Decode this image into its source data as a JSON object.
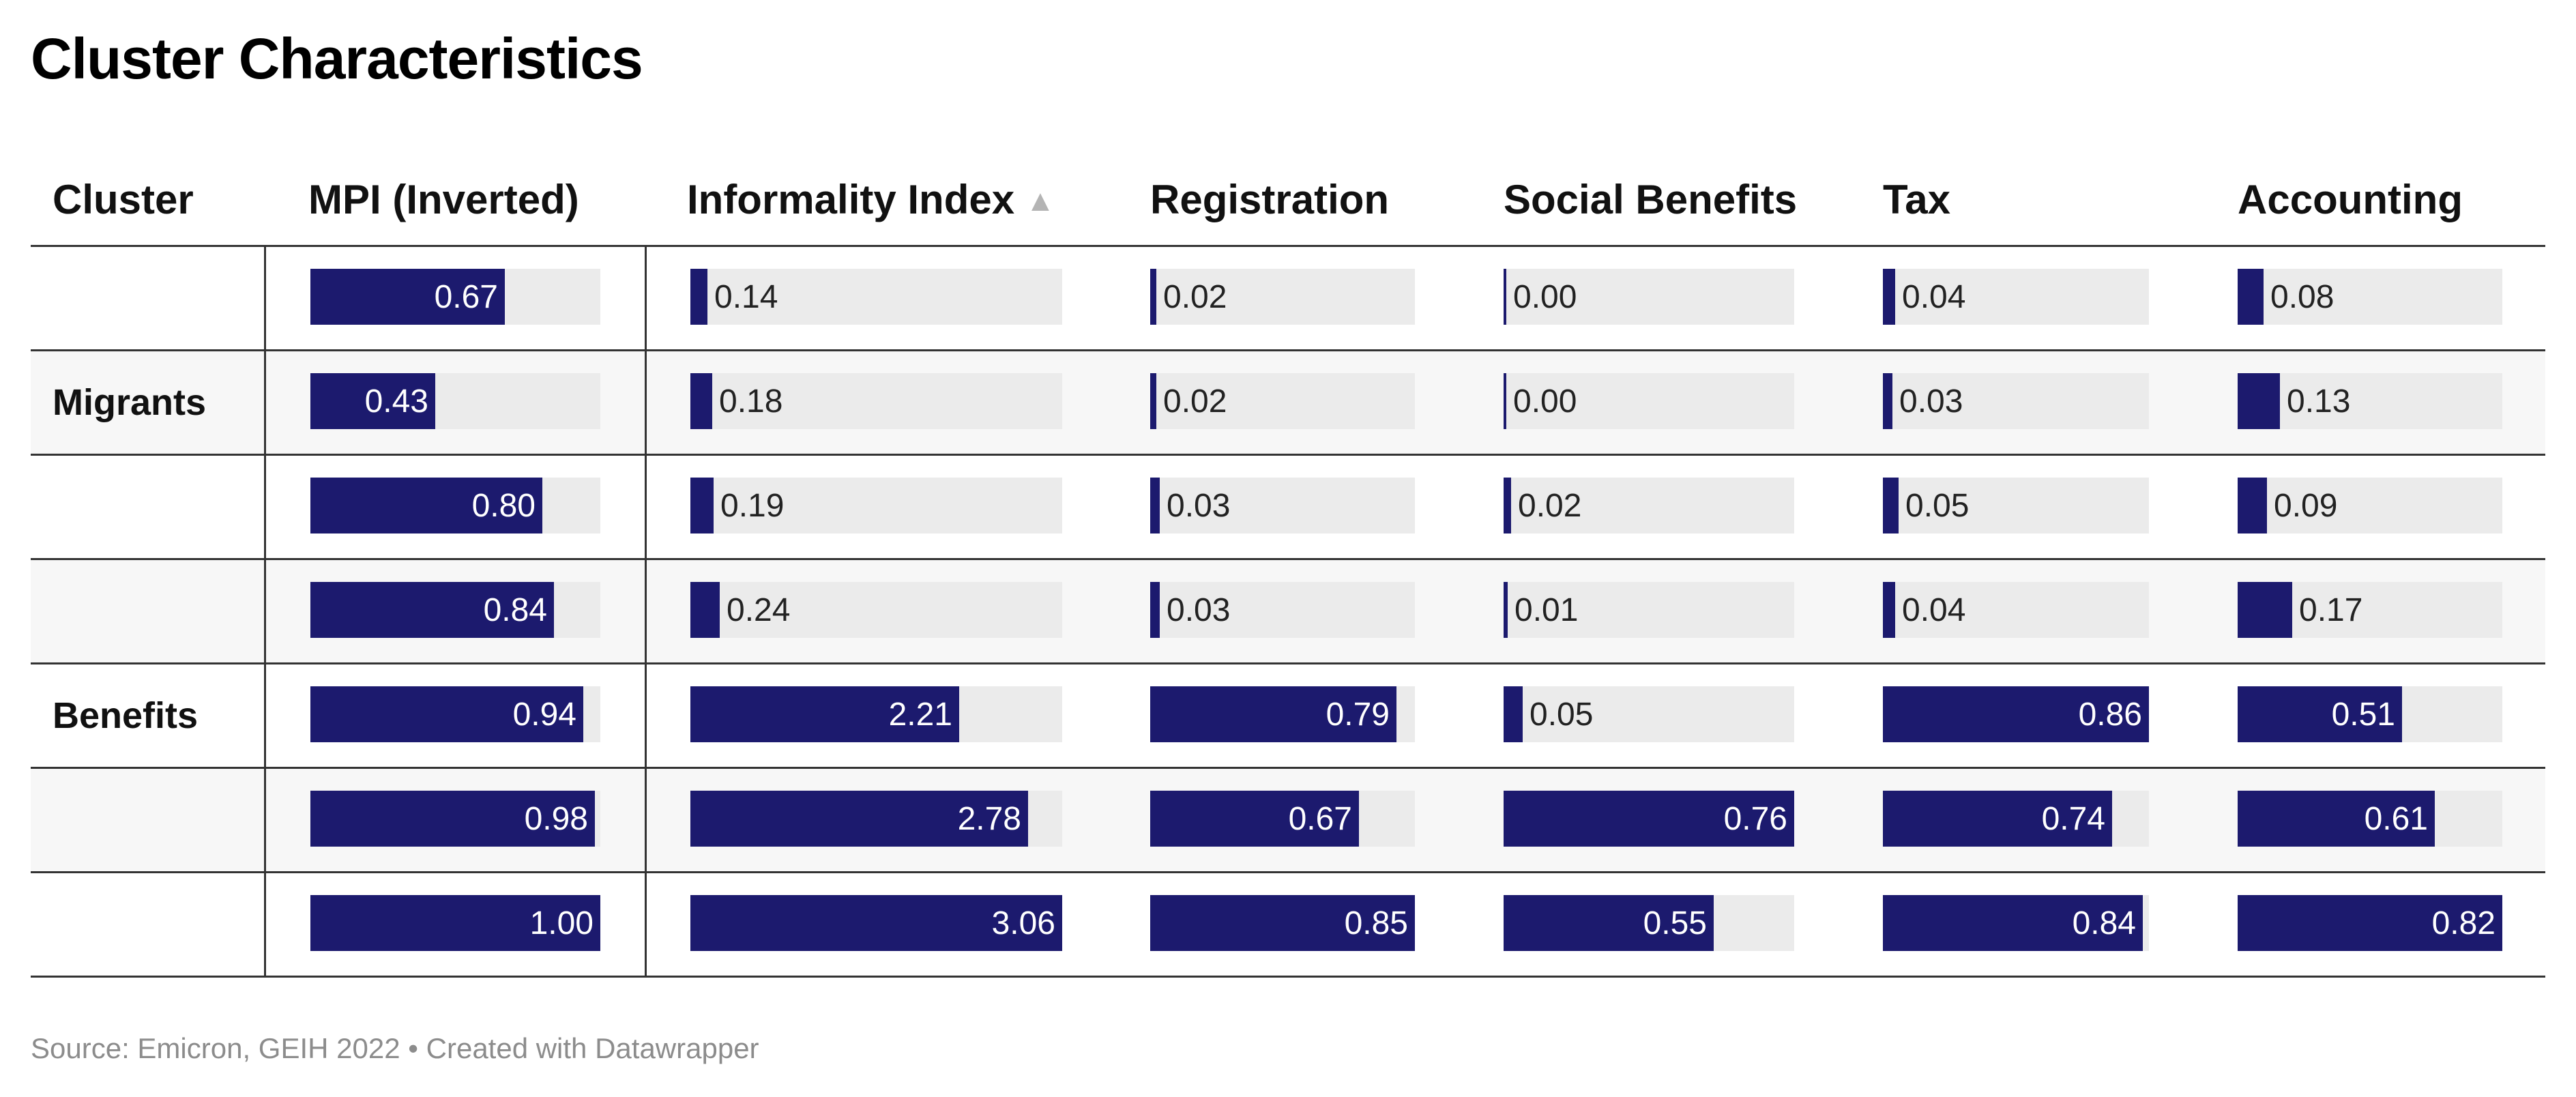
{
  "title": "Cluster Characteristics",
  "footer": {
    "source": "Source: Emicron, GEIH 2022",
    "separator": "•",
    "credit": "Created with Datawrapper"
  },
  "colors": {
    "bar": "#1c1a6e",
    "track": "#ebebeb",
    "alt_row": "#f7f7f7"
  },
  "chart_data": {
    "type": "table",
    "sorted_by": "Informality Index",
    "sort_direction": "ascending",
    "sort_icon": "triangle-up-icon",
    "columns": [
      {
        "key": "cluster",
        "label": "Cluster",
        "max": null
      },
      {
        "key": "mpi",
        "label": "MPI (Inverted)",
        "max": 1.0
      },
      {
        "key": "informality",
        "label": "Informality Index",
        "max": 3.06
      },
      {
        "key": "registration",
        "label": "Registration",
        "max": 0.85
      },
      {
        "key": "social",
        "label": "Social Benefits",
        "max": 0.76
      },
      {
        "key": "tax",
        "label": "Tax",
        "max": 0.86
      },
      {
        "key": "accounting",
        "label": "Accounting",
        "max": 0.82
      }
    ],
    "rows": [
      {
        "cluster": "",
        "mpi": 0.67,
        "informality": 0.14,
        "registration": 0.02,
        "social": 0.0,
        "tax": 0.04,
        "accounting": 0.08
      },
      {
        "cluster": "Migrants",
        "mpi": 0.43,
        "informality": 0.18,
        "registration": 0.02,
        "social": 0.0,
        "tax": 0.03,
        "accounting": 0.13
      },
      {
        "cluster": "",
        "mpi": 0.8,
        "informality": 0.19,
        "registration": 0.03,
        "social": 0.02,
        "tax": 0.05,
        "accounting": 0.09
      },
      {
        "cluster": "",
        "mpi": 0.84,
        "informality": 0.24,
        "registration": 0.03,
        "social": 0.01,
        "tax": 0.04,
        "accounting": 0.17
      },
      {
        "cluster": "Benefits",
        "mpi": 0.94,
        "informality": 2.21,
        "registration": 0.79,
        "social": 0.05,
        "tax": 0.86,
        "accounting": 0.51
      },
      {
        "cluster": "",
        "mpi": 0.98,
        "informality": 2.78,
        "registration": 0.67,
        "social": 0.76,
        "tax": 0.74,
        "accounting": 0.61
      },
      {
        "cluster": "",
        "mpi": 1.0,
        "informality": 3.06,
        "registration": 0.85,
        "social": 0.55,
        "tax": 0.84,
        "accounting": 0.82
      }
    ]
  }
}
